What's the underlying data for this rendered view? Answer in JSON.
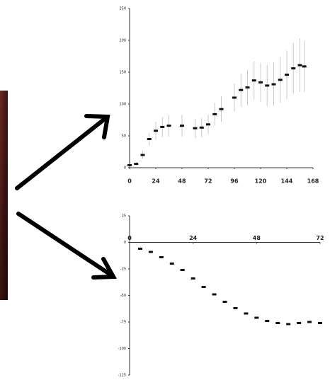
{
  "chart_data": [
    {
      "type": "line",
      "x": [
        0,
        6,
        12,
        18,
        24,
        30,
        36,
        48,
        60,
        66,
        72,
        78,
        84,
        96,
        102,
        108,
        114,
        120,
        126,
        132,
        138,
        144,
        150,
        156,
        160
      ],
      "series": [
        {
          "color": "#111111",
          "values": [
            4,
            6,
            20,
            45,
            58,
            64,
            66,
            66,
            62,
            63,
            68,
            84,
            92,
            110,
            122,
            126,
            137,
            134,
            129,
            131,
            138,
            146,
            156,
            161,
            159
          ],
          "error": [
            2,
            3,
            6,
            10,
            14,
            16,
            17,
            17,
            15,
            15,
            15,
            18,
            20,
            22,
            26,
            28,
            30,
            30,
            32,
            34,
            36,
            38,
            40,
            42,
            40
          ]
        }
      ],
      "xlim": [
        0,
        168
      ],
      "xticks": [
        0,
        24,
        48,
        72,
        96,
        120,
        144,
        168
      ],
      "ylim": [
        0,
        250
      ],
      "yticks": [
        0,
        50,
        100,
        150,
        200,
        250
      ]
    },
    {
      "type": "line",
      "x": [
        4,
        8,
        12,
        16,
        20,
        24,
        28,
        32,
        36,
        40,
        44,
        48,
        52,
        56,
        60,
        64,
        68,
        72
      ],
      "series": [
        {
          "color": "#111111",
          "values": [
            -6,
            -9,
            -14,
            -20,
            -26,
            -34,
            -42,
            -49,
            -56,
            -62,
            -67,
            -71,
            -74,
            -76,
            -77,
            -76,
            -75,
            -76
          ]
        }
      ],
      "xlim": [
        0,
        72
      ],
      "xticks": [
        0,
        24,
        48,
        72
      ],
      "ylim": [
        -125,
        25
      ],
      "yticks": [
        -125,
        -100,
        -75,
        -50,
        -25,
        0,
        25
      ]
    }
  ]
}
